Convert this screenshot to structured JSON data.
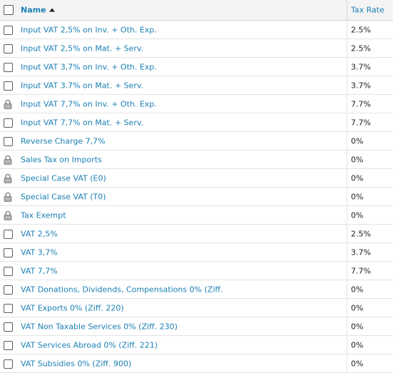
{
  "header": {
    "name_label": "Name",
    "rate_label": "Tax Rate",
    "sort_icon": "sort-ascending-icon"
  },
  "rows": [
    {
      "name": "Input VAT 2,5% on Inv. + Oth. Exp.",
      "rate": "2.5%",
      "locked": false
    },
    {
      "name": "Input VAT 2,5% on Mat. + Serv.",
      "rate": "2.5%",
      "locked": false
    },
    {
      "name": "Input VAT 3,7% on Inv. + Oth. Exp.",
      "rate": "3.7%",
      "locked": false
    },
    {
      "name": "Input VAT 3.7% on Mat. + Serv.",
      "rate": "3.7%",
      "locked": false
    },
    {
      "name": "Input VAT 7,7% on Inv. + Oth. Exp.",
      "rate": "7.7%",
      "locked": true
    },
    {
      "name": "Input VAT 7,7% on Mat. + Serv.",
      "rate": "7.7%",
      "locked": false
    },
    {
      "name": "Reverse Charge 7,7%",
      "rate": "0%",
      "locked": false
    },
    {
      "name": "Sales Tax on Imports",
      "rate": "0%",
      "locked": true
    },
    {
      "name": "Special Case VAT (E0)",
      "rate": "0%",
      "locked": true
    },
    {
      "name": "Special Case VAT (T0)",
      "rate": "0%",
      "locked": true
    },
    {
      "name": "Tax Exempt",
      "rate": "0%",
      "locked": true
    },
    {
      "name": "VAT 2,5%",
      "rate": "2.5%",
      "locked": false
    },
    {
      "name": "VAT 3,7%",
      "rate": "3.7%",
      "locked": false
    },
    {
      "name": "VAT 7,7%",
      "rate": "7.7%",
      "locked": false
    },
    {
      "name": "VAT Donations, Dividends, Compensations 0% (Ziff.",
      "rate": "0%",
      "locked": false
    },
    {
      "name": "VAT Exports 0% (Ziff. 220)",
      "rate": "0%",
      "locked": false
    },
    {
      "name": "VAT Non Taxable Services 0% (Ziff. 230)",
      "rate": "0%",
      "locked": false
    },
    {
      "name": "VAT Services Abroad 0% (Ziff. 221)",
      "rate": "0%",
      "locked": false
    },
    {
      "name": "VAT Subsidies 0% (Ziff. 900)",
      "rate": "0%",
      "locked": false
    }
  ],
  "colors": {
    "link": "#1a7fb3",
    "header_bg": "#f4f4f4",
    "row_border": "#e3e3e3"
  }
}
